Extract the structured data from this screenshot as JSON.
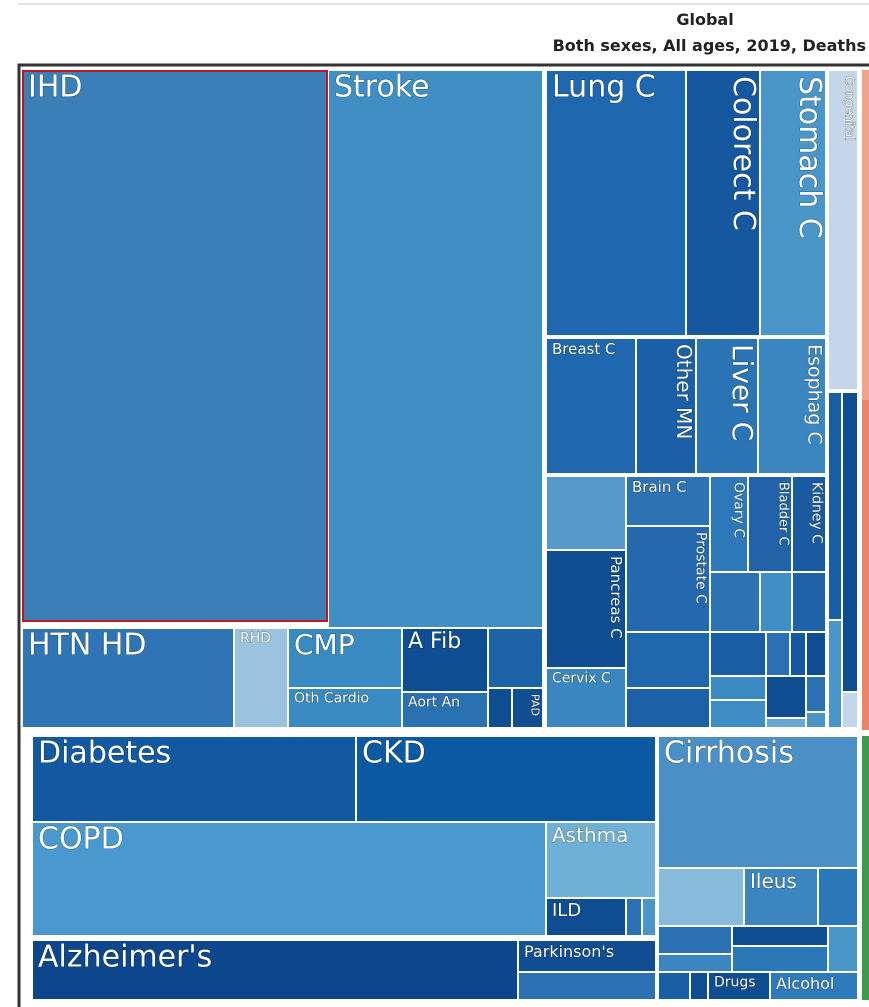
{
  "header": {
    "title": "Global",
    "subtitle": "Both sexes, All ages, 2019, Deaths"
  },
  "tiles": [
    "IHD",
    "Stroke",
    "HTN HD",
    "RHD",
    "CMP",
    "Oth Cardio",
    "A Fib",
    "Aort An",
    "PAD",
    "Lung C",
    "Colorect C",
    "Stomach C",
    "Congenital",
    "Breast C",
    "Other MN",
    "Liver C",
    "Esophag C",
    "Brain C",
    "Ovary C",
    "Bladder C",
    "Kidney C",
    "Pancreas C",
    "Prostate C",
    "Cervix C",
    "Diabetes",
    "CKD",
    "COPD",
    "Asthma",
    "ILD",
    "Alzheimer's",
    "Parkinson's",
    "Cirrhosis",
    "Ileus",
    "Drugs",
    "Alcohol"
  ]
}
